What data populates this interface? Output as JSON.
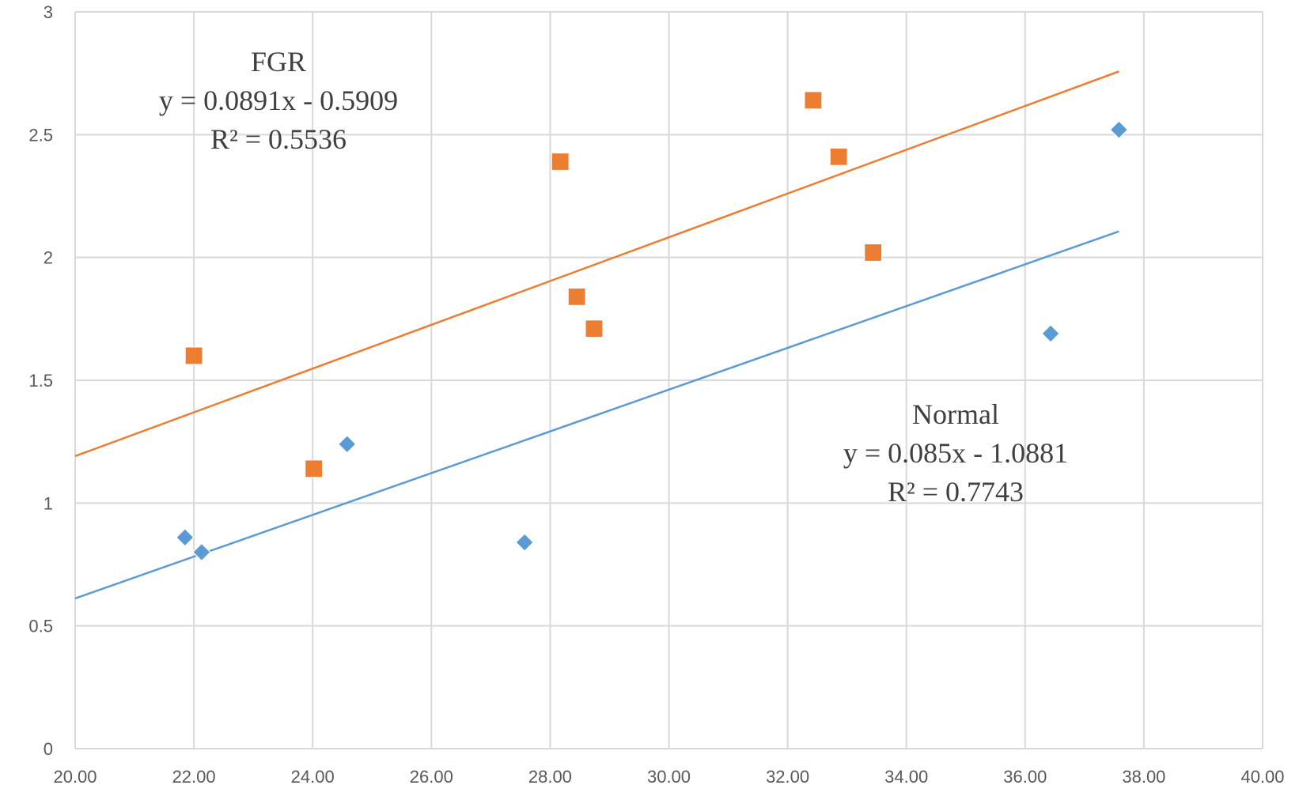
{
  "chart_data": {
    "type": "scatter",
    "title": "",
    "xlabel": "",
    "ylabel": "",
    "xlim": [
      20,
      40
    ],
    "ylim": [
      0,
      3
    ],
    "x_ticks": [
      "20.00",
      "22.00",
      "24.00",
      "26.00",
      "28.00",
      "30.00",
      "32.00",
      "34.00",
      "36.00",
      "38.00",
      "40.00"
    ],
    "y_ticks": [
      "0",
      "0.5",
      "1",
      "1.5",
      "2",
      "2.5",
      "3"
    ],
    "grid": true,
    "legend": "none",
    "series": [
      {
        "name": "Normal",
        "marker": "diamond",
        "color": "#5B9BD5",
        "points": [
          {
            "x": 21.85,
            "y": 0.86
          },
          {
            "x": 22.13,
            "y": 0.8
          },
          {
            "x": 24.58,
            "y": 1.24
          },
          {
            "x": 27.57,
            "y": 0.84
          },
          {
            "x": 36.43,
            "y": 1.69
          },
          {
            "x": 37.58,
            "y": 2.52
          }
        ],
        "trendline": {
          "slope": 0.085,
          "intercept": -1.0881,
          "x_range": [
            20,
            37.58
          ]
        },
        "annotation": {
          "name": "Normal",
          "equation": "y = 0.085x - 1.0881",
          "r2": "R² = 0.7743"
        }
      },
      {
        "name": "FGR",
        "marker": "square",
        "color": "#ED7D31",
        "points": [
          {
            "x": 22.0,
            "y": 1.6
          },
          {
            "x": 24.02,
            "y": 1.14
          },
          {
            "x": 28.17,
            "y": 2.39
          },
          {
            "x": 28.45,
            "y": 1.84
          },
          {
            "x": 28.74,
            "y": 1.71
          },
          {
            "x": 32.43,
            "y": 2.64
          },
          {
            "x": 32.86,
            "y": 2.41
          },
          {
            "x": 33.44,
            "y": 2.02
          }
        ],
        "trendline": {
          "slope": 0.0891,
          "intercept": -0.5909,
          "x_range": [
            20,
            37.58
          ]
        },
        "annotation": {
          "name": "FGR",
          "equation": "y = 0.0891x - 0.5909",
          "r2": "R² = 0.5536"
        }
      }
    ]
  }
}
